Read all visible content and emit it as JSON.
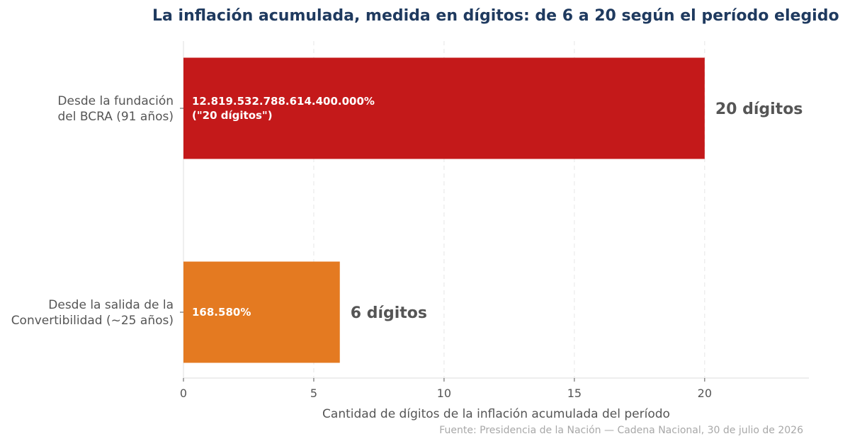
{
  "title": "La inflación acumulada, medida en dígitos: de 6 a 20 según el período elegido",
  "source": "Fuente: Presidencia de la Nación — Cadena Nacional, 30 de julio de 2026",
  "chart_data": {
    "type": "bar",
    "orientation": "horizontal",
    "title": "La inflación acumulada, medida en dígitos: de 6 a 20 según el período elegido",
    "xlabel": "Cantidad de dígitos de la inflación acumulada del período",
    "ylabel": "",
    "xlim": [
      0,
      24
    ],
    "xticks": [
      0,
      5,
      10,
      15,
      20
    ],
    "grid": "vertical dashed",
    "categories": [
      [
        "Desde la fundación",
        "del BCRA (91 años)"
      ],
      [
        "Desde la salida de la",
        "Convertibilidad (~25 años)"
      ]
    ],
    "values": [
      20,
      6
    ],
    "colors": [
      "#c4191a",
      "#e47a21"
    ],
    "inner_labels": [
      [
        "12.819.532.788.614.400.000%",
        "(\"20 dígitos\")"
      ],
      [
        "168.580%"
      ]
    ],
    "outer_labels": [
      "20 dígitos",
      "6 dígitos"
    ]
  }
}
